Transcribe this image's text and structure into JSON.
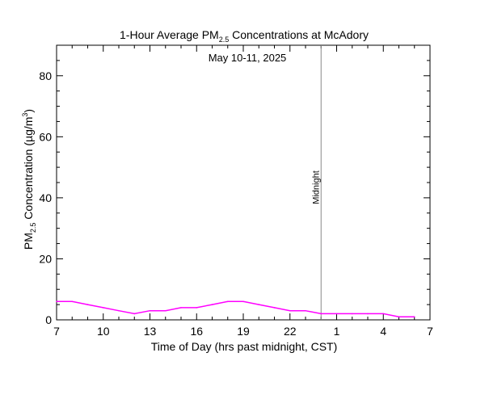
{
  "chart_data": {
    "type": "line",
    "title": {
      "prefix": "1-Hour Average PM",
      "subscript": "2.5",
      "suffix": " Concentrations at McAdory"
    },
    "subtitle": "May 10-11, 2025",
    "xlabel": "Time of Day (hrs past midnight, CST)",
    "ylabel": {
      "prefix": "PM",
      "subscript": "2.5",
      "middle": " Concentration (µg/m",
      "superscript": "3",
      "suffix": ")"
    },
    "x_ticks": [
      {
        "label": "7",
        "hour": 7
      },
      {
        "label": "10",
        "hour": 10
      },
      {
        "label": "13",
        "hour": 13
      },
      {
        "label": "16",
        "hour": 16
      },
      {
        "label": "19",
        "hour": 19
      },
      {
        "label": "22",
        "hour": 22
      },
      {
        "label": "1",
        "hour": 25
      },
      {
        "label": "4",
        "hour": 28
      },
      {
        "label": "7",
        "hour": 31
      }
    ],
    "y_ticks": [
      0,
      20,
      40,
      60,
      80
    ],
    "xlim": [
      7,
      31
    ],
    "ylim": [
      0,
      90
    ],
    "midline": {
      "label": "Midnight",
      "hour": 24.0
    },
    "series": [
      {
        "color": "#ff00ff",
        "x": [
          7,
          8,
          9,
          10,
          11,
          12,
          13,
          14,
          15,
          16,
          17,
          18,
          19,
          20,
          21,
          22,
          23,
          24,
          25,
          26,
          27,
          28,
          29,
          30
        ],
        "y": [
          6,
          6,
          5,
          4,
          3,
          2,
          3,
          3,
          4,
          4,
          5,
          6,
          6,
          5,
          4,
          3,
          3,
          2,
          2,
          2,
          2,
          2,
          1,
          1
        ]
      }
    ],
    "grid": false
  }
}
